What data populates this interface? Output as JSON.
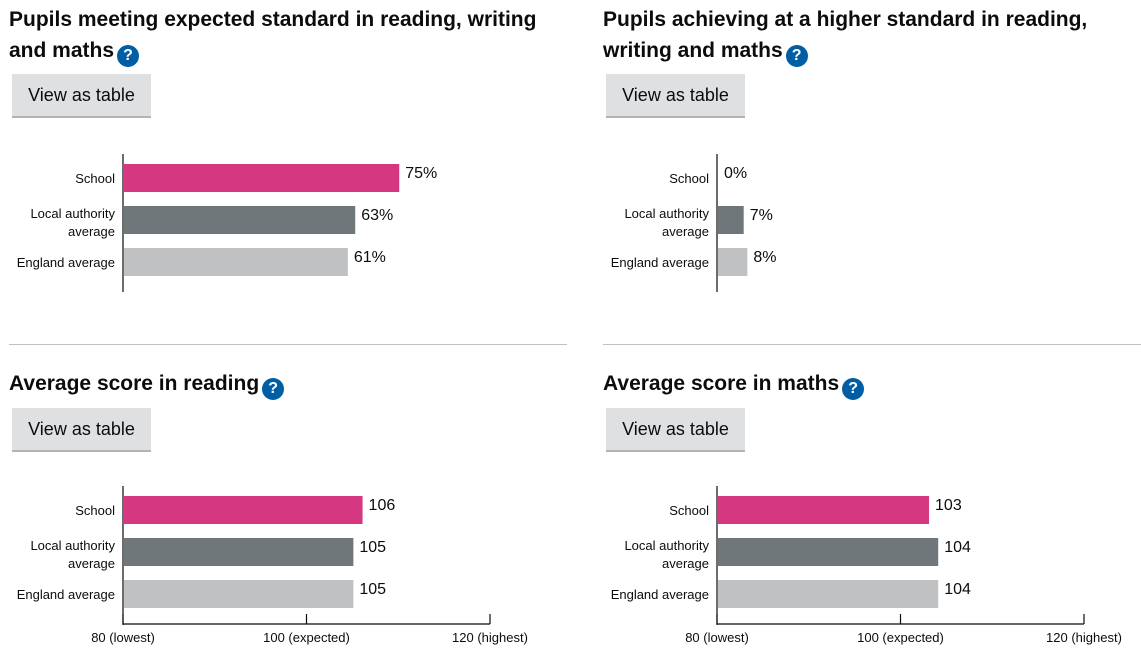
{
  "ui": {
    "button_label": "View as table",
    "help_glyph": "?",
    "help_icon": "question-circle-icon"
  },
  "colors": {
    "school": "#d53880",
    "local_authority": "#6f777b",
    "england": "#bfc1c3",
    "help_icon_bg": "#005ea5",
    "button_bg": "#dee0e2"
  },
  "chart_data": [
    {
      "type": "bar",
      "orientation": "horizontal",
      "title": "Pupils meeting expected standard in reading, writing and maths",
      "categories": [
        "School",
        "Local authority average",
        "England average"
      ],
      "values": [
        75,
        63,
        61
      ],
      "value_labels": [
        "75%",
        "63%",
        "61%"
      ],
      "xlim": [
        0,
        100
      ],
      "unit": "%",
      "axis_ticks": []
    },
    {
      "type": "bar",
      "orientation": "horizontal",
      "title": "Pupils achieving at a higher standard in reading, writing and maths",
      "categories": [
        "School",
        "Local authority average",
        "England average"
      ],
      "values": [
        0,
        7,
        8
      ],
      "value_labels": [
        "0%",
        "7%",
        "8%"
      ],
      "xlim": [
        0,
        100
      ],
      "unit": "%",
      "axis_ticks": []
    },
    {
      "type": "bar",
      "orientation": "horizontal",
      "title": "Average score in reading",
      "categories": [
        "School",
        "Local authority average",
        "England average"
      ],
      "values": [
        106,
        105,
        105
      ],
      "value_labels": [
        "106",
        "105",
        "105"
      ],
      "xlim": [
        80,
        120
      ],
      "axis_ticks": [
        {
          "value": 80,
          "label": "80 (lowest)"
        },
        {
          "value": 100,
          "label": "100 (expected)"
        },
        {
          "value": 120,
          "label": "120 (highest)"
        }
      ]
    },
    {
      "type": "bar",
      "orientation": "horizontal",
      "title": "Average score in maths",
      "categories": [
        "School",
        "Local authority average",
        "England average"
      ],
      "values": [
        103,
        104,
        104
      ],
      "value_labels": [
        "103",
        "104",
        "104"
      ],
      "xlim": [
        80,
        120
      ],
      "axis_ticks": [
        {
          "value": 80,
          "label": "80 (lowest)"
        },
        {
          "value": 100,
          "label": "100 (expected)"
        },
        {
          "value": 120,
          "label": "120 (highest)"
        }
      ]
    }
  ]
}
